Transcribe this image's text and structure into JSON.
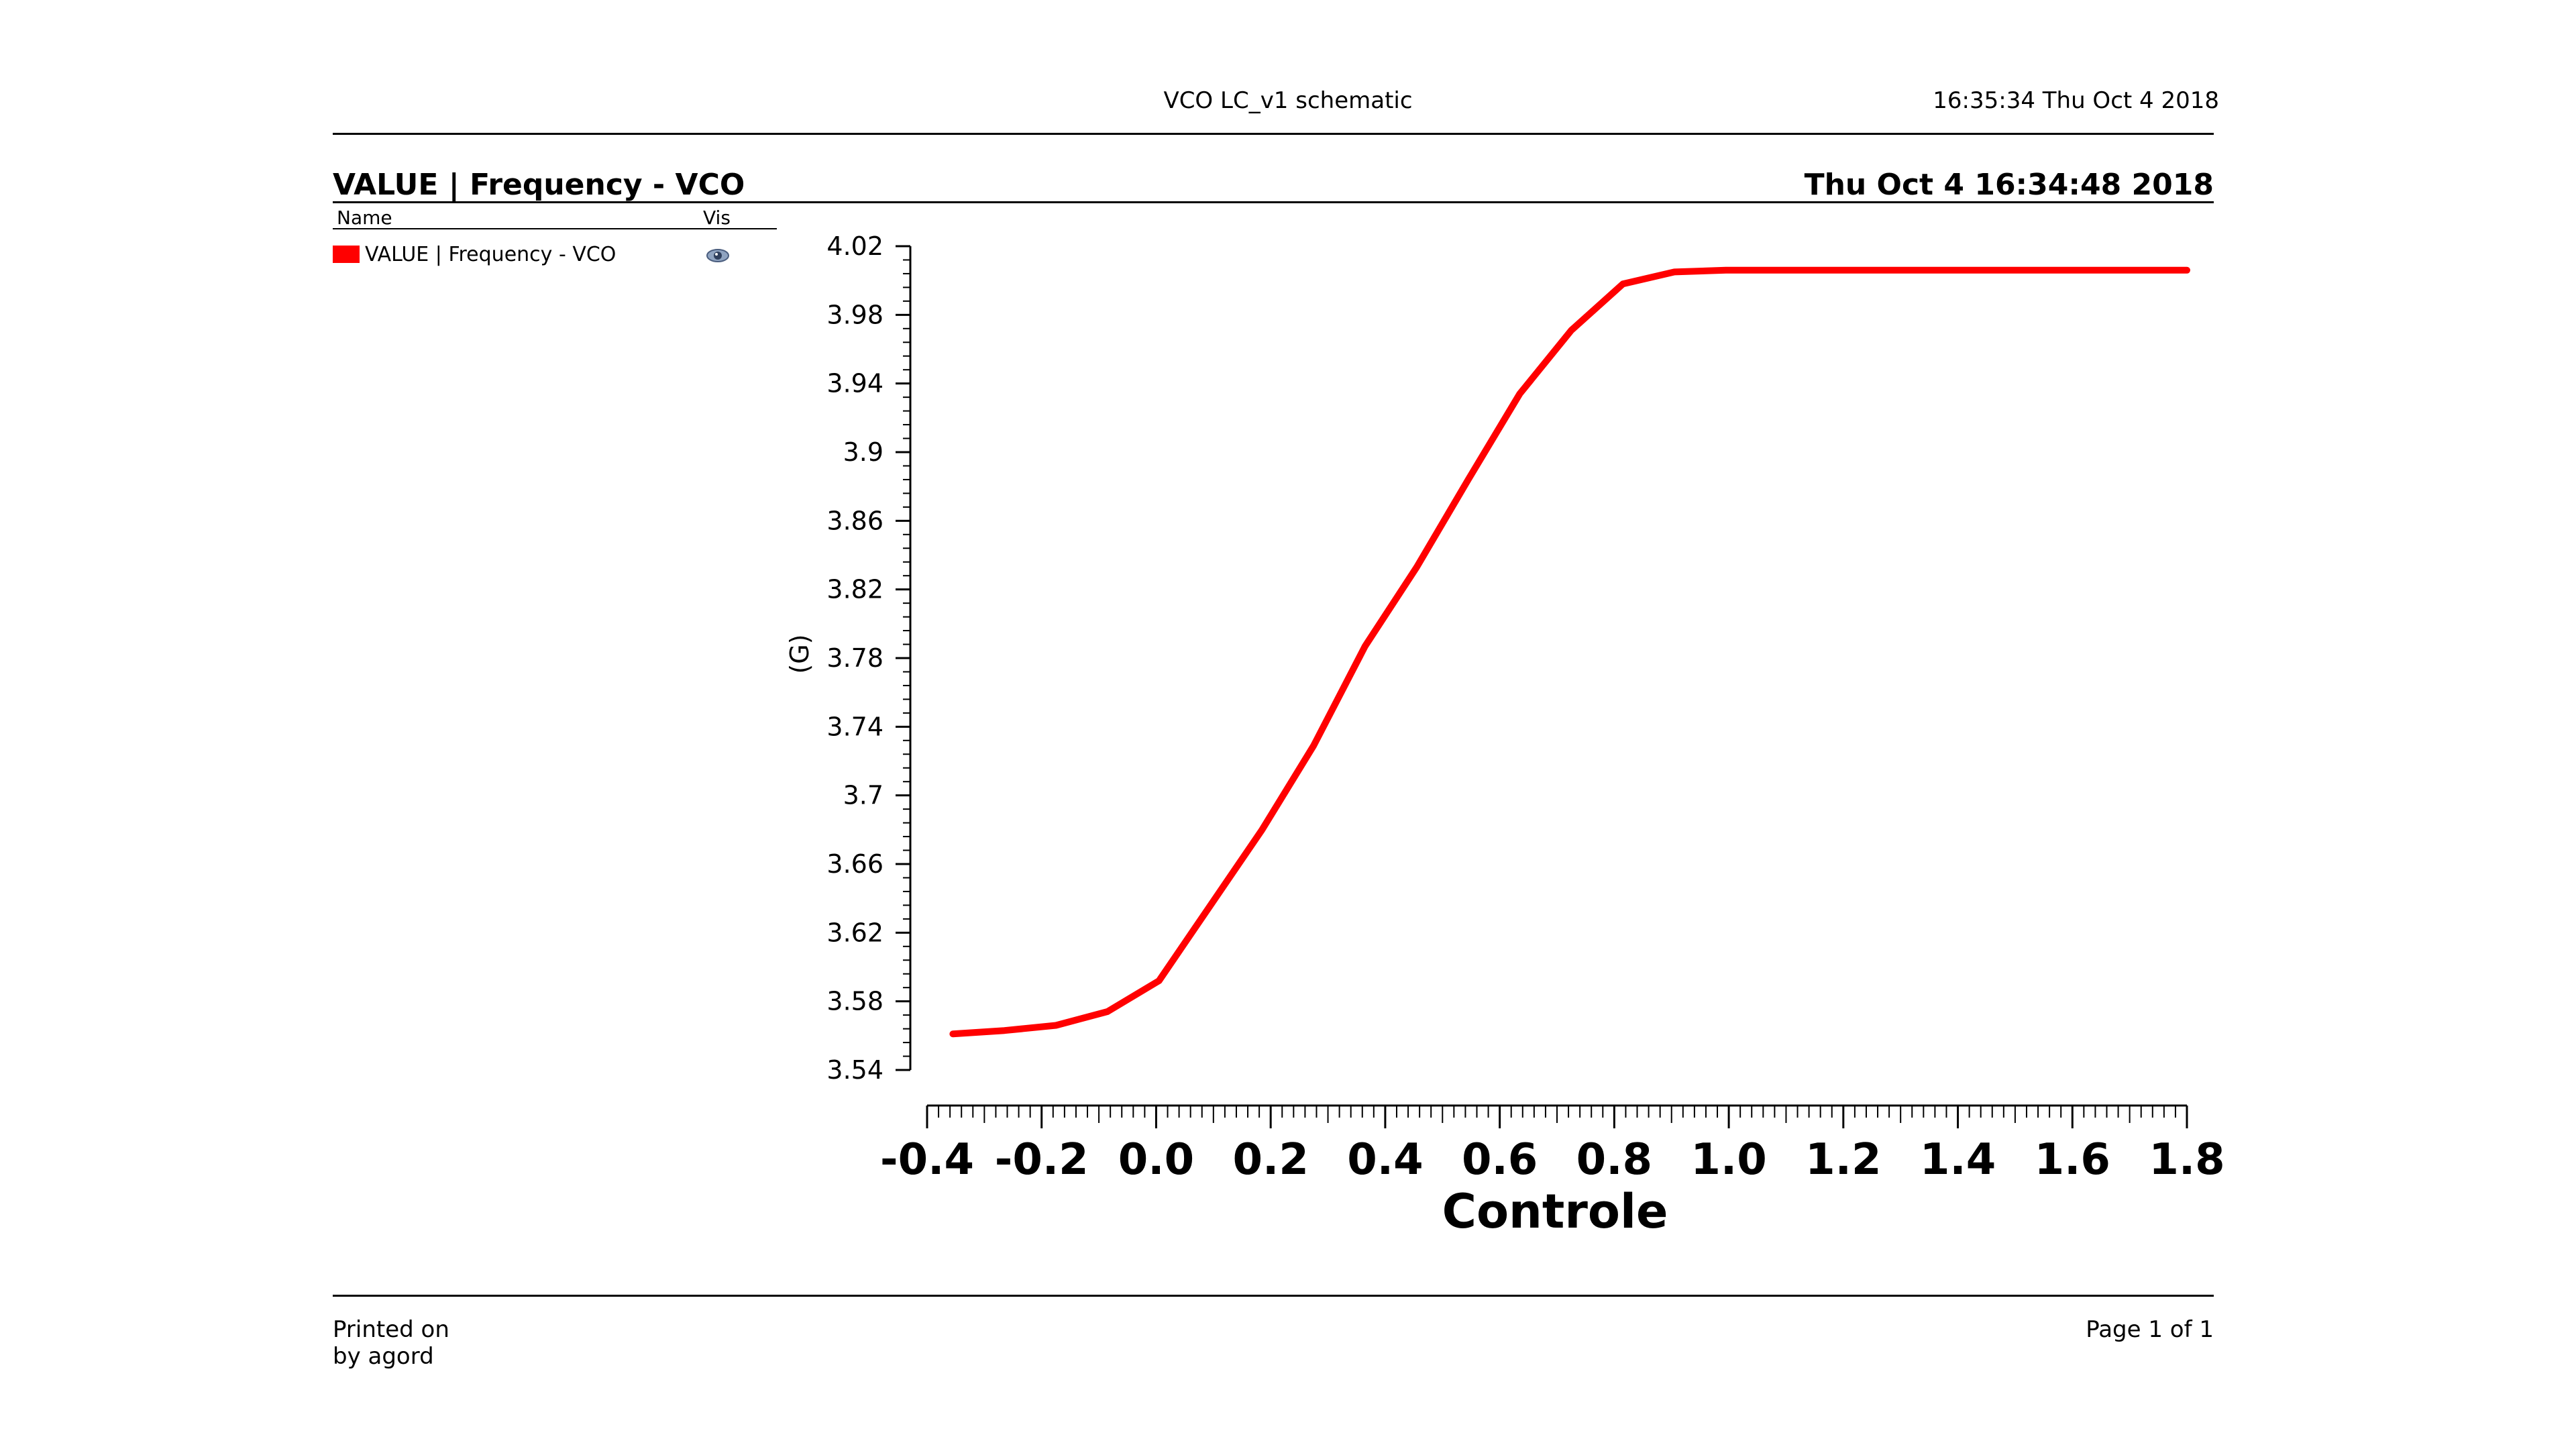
{
  "page": {
    "header_title": "VCO LC_v1 schematic",
    "header_datetime": "16:35:34  Thu Oct 4 2018",
    "footer_printed_on": "Printed on",
    "footer_by": "by agord",
    "footer_page": "Page 1 of 1"
  },
  "plot_header": {
    "title": "VALUE | Frequency - VCO",
    "datetime": "Thu Oct 4 16:34:48 2018"
  },
  "legend": {
    "col_name": "Name",
    "col_vis": "Vis",
    "entry_label": "VALUE | Frequency - VCO",
    "entry_color": "#ff0000",
    "vis_icon": "eye-icon"
  },
  "chart_data": {
    "type": "line",
    "title": "",
    "xlabel": "Controle",
    "ylabel": "(G)",
    "xlim": [
      -0.4,
      1.8
    ],
    "ylim": [
      3.54,
      4.02
    ],
    "x_ticks": [
      "-0.4",
      "-0.2",
      "0.0",
      "0.2",
      "0.4",
      "0.6",
      "0.8",
      "1.0",
      "1.2",
      "1.4",
      "1.6",
      "1.8"
    ],
    "y_ticks": [
      "3.54",
      "3.58",
      "3.62",
      "3.66",
      "3.7",
      "3.74",
      "3.78",
      "3.82",
      "3.86",
      "3.9",
      "3.94",
      "3.98",
      "4.02"
    ],
    "series": [
      {
        "name": "VALUE | Frequency - VCO",
        "color": "#ff0000",
        "x": [
          -0.355,
          -0.265,
          -0.175,
          -0.085,
          0.005,
          0.095,
          0.185,
          0.275,
          0.365,
          0.455,
          0.545,
          0.635,
          0.725,
          0.815,
          0.905,
          0.995,
          1.085,
          1.175,
          1.265,
          1.355,
          1.445,
          1.535,
          1.625,
          1.715,
          1.8
        ],
        "y": [
          3.561,
          3.563,
          3.566,
          3.574,
          3.592,
          3.636,
          3.68,
          3.729,
          3.787,
          3.833,
          3.884,
          3.934,
          3.971,
          3.998,
          4.005,
          4.006,
          4.006,
          4.006,
          4.006,
          4.006,
          4.006,
          4.006,
          4.006,
          4.006,
          4.006
        ]
      }
    ],
    "grid": false
  }
}
